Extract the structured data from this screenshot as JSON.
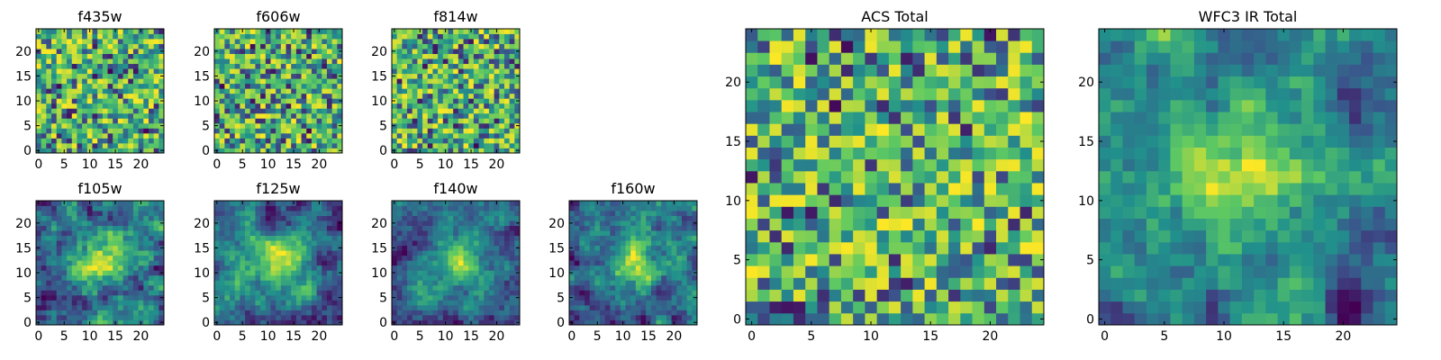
{
  "chart_data": [
    {
      "type": "heatmap",
      "title": "f435w",
      "grid_size": 25,
      "colormap": "viridis",
      "pattern": "noise",
      "seed": 11,
      "xticks": [
        0,
        5,
        10,
        15,
        20
      ],
      "yticks": [
        0,
        5,
        10,
        15,
        20
      ],
      "xlim": [
        0,
        25
      ],
      "ylim": [
        0,
        25
      ]
    },
    {
      "type": "heatmap",
      "title": "f606w",
      "grid_size": 25,
      "colormap": "viridis",
      "pattern": "noise",
      "seed": 23,
      "xticks": [
        0,
        5,
        10,
        15,
        20
      ],
      "yticks": [
        0,
        5,
        10,
        15,
        20
      ],
      "xlim": [
        0,
        25
      ],
      "ylim": [
        0,
        25
      ]
    },
    {
      "type": "heatmap",
      "title": "f814w",
      "grid_size": 25,
      "colormap": "viridis",
      "pattern": "noise",
      "seed": 37,
      "xticks": [
        0,
        5,
        10,
        15,
        20
      ],
      "yticks": [
        0,
        5,
        10,
        15,
        20
      ],
      "xlim": [
        0,
        25
      ],
      "ylim": [
        0,
        25
      ]
    },
    {
      "type": "heatmap",
      "title": "f105w",
      "grid_size": 25,
      "colormap": "viridis",
      "pattern": "smooth",
      "seed": 41,
      "xticks": [
        0,
        5,
        10,
        15,
        20
      ],
      "yticks": [
        0,
        5,
        10,
        15,
        20
      ],
      "xlim": [
        0,
        25
      ],
      "ylim": [
        0,
        25
      ]
    },
    {
      "type": "heatmap",
      "title": "f125w",
      "grid_size": 25,
      "colormap": "viridis",
      "pattern": "smooth",
      "seed": 53,
      "xticks": [
        0,
        5,
        10,
        15,
        20
      ],
      "yticks": [
        0,
        5,
        10,
        15,
        20
      ],
      "xlim": [
        0,
        25
      ],
      "ylim": [
        0,
        25
      ]
    },
    {
      "type": "heatmap",
      "title": "f140w",
      "grid_size": 25,
      "colormap": "viridis",
      "pattern": "smooth",
      "seed": 67,
      "xticks": [
        0,
        5,
        10,
        15,
        20
      ],
      "yticks": [
        0,
        5,
        10,
        15,
        20
      ],
      "xlim": [
        0,
        25
      ],
      "ylim": [
        0,
        25
      ]
    },
    {
      "type": "heatmap",
      "title": "f160w",
      "grid_size": 25,
      "colormap": "viridis",
      "pattern": "smooth",
      "seed": 79,
      "xticks": [
        0,
        5,
        10,
        15,
        20
      ],
      "yticks": [
        0,
        5,
        10,
        15,
        20
      ],
      "xlim": [
        0,
        25
      ],
      "ylim": [
        0,
        25
      ]
    },
    {
      "type": "heatmap",
      "title": "ACS Total",
      "grid_size": 25,
      "colormap": "viridis",
      "pattern": "noise",
      "seed": 97,
      "xticks": [
        0,
        5,
        10,
        15,
        20
      ],
      "yticks": [
        0,
        5,
        10,
        15,
        20
      ],
      "xlim": [
        0,
        25
      ],
      "ylim": [
        0,
        25
      ]
    },
    {
      "type": "heatmap",
      "title": "WFC3 IR Total",
      "grid_size": 25,
      "colormap": "viridis",
      "pattern": "smooth",
      "seed": 131,
      "xticks": [
        0,
        5,
        10,
        15,
        20
      ],
      "yticks": [
        0,
        5,
        10,
        15,
        20
      ],
      "xlim": [
        0,
        25
      ],
      "ylim": [
        0,
        25
      ]
    }
  ],
  "colors": {
    "viridis_stops": [
      "#440154",
      "#3b528b",
      "#21918c",
      "#5ec962",
      "#fde725"
    ],
    "axis": "#000000",
    "background": "#ffffff"
  }
}
